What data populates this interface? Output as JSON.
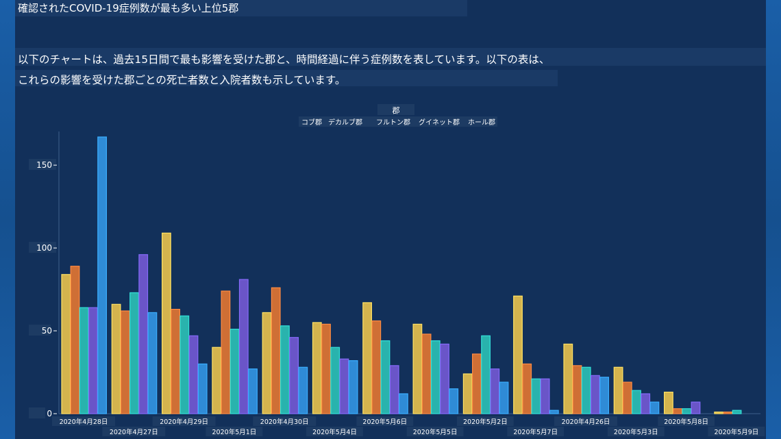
{
  "page": {
    "title": "確認されたCOVID-19症例数が最も多い上位5郡",
    "description_line1": "以下のチャートは、過去15日間で最も影響を受けた郡と、時間経過に伴う症例数を表しています。以下の表は、",
    "description_line2": "これらの影響を受けた郡ごとの死亡者数と入院者数も示しています。"
  },
  "colors": {
    "background": "#12305a",
    "コブ郡": "#d4b44e",
    "デカルブ郡": "#cf6f35",
    "フルトン郡": "#29b3ad",
    "グイネット郡": "#6a55c8",
    "ホール郡": "#2f8bd6"
  },
  "chart_data": {
    "type": "bar",
    "legend_title": "郡",
    "legend_placement": "top-center",
    "grid": false,
    "ylim": [
      0,
      170
    ],
    "yticks": [
      "0",
      "50",
      "100",
      "150"
    ],
    "categories": [
      "2020年4月28日",
      "2020年4月27日",
      "2020年4月29日",
      "2020年5月1日",
      "2020年4月30日",
      "2020年5月4日",
      "2020年5月6日",
      "2020年5月5日",
      "2020年5月2日",
      "2020年5月7日",
      "2020年4月26日",
      "2020年5月3日",
      "2020年5月8日",
      "2020年5月9日"
    ],
    "series": [
      {
        "name": "コブ郡",
        "values": [
          84,
          66,
          109,
          40,
          61,
          55,
          67,
          54,
          24,
          71,
          42,
          28,
          13,
          1
        ]
      },
      {
        "name": "デカルブ郡",
        "values": [
          89,
          62,
          63,
          74,
          76,
          54,
          56,
          48,
          36,
          30,
          29,
          19,
          3,
          1
        ]
      },
      {
        "name": "フルトン郡",
        "values": [
          64,
          73,
          59,
          51,
          53,
          40,
          44,
          44,
          47,
          21,
          28,
          14,
          3,
          2
        ]
      },
      {
        "name": "グイネット郡",
        "values": [
          64,
          96,
          47,
          81,
          46,
          33,
          29,
          42,
          27,
          21,
          23,
          12,
          7,
          0
        ]
      },
      {
        "name": "ホール郡",
        "values": [
          167,
          61,
          30,
          27,
          28,
          32,
          12,
          15,
          19,
          2,
          22,
          7,
          0,
          0
        ]
      }
    ]
  }
}
